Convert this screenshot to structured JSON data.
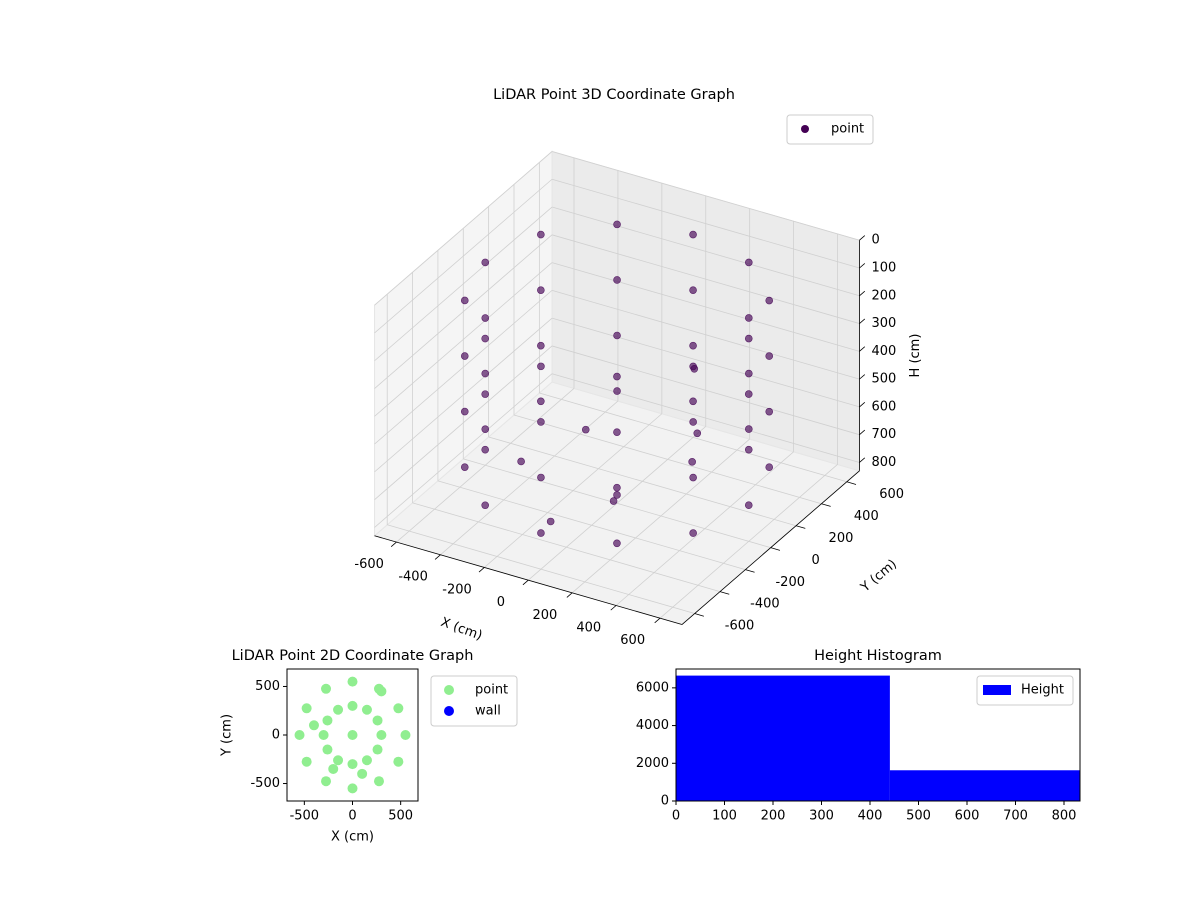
{
  "chart_data": [
    {
      "type": "scatter3d",
      "title": "LiDAR Point 3D Coordinate Graph",
      "xlabel": "X (cm)",
      "ylabel": "Y (cm)",
      "zlabel": "H (cm)",
      "xlim": [
        -700,
        700
      ],
      "ylim": [
        -700,
        700
      ],
      "zlim": [
        830,
        0
      ],
      "xticks": [
        -600,
        -400,
        -200,
        0,
        200,
        400,
        600
      ],
      "yticks": [
        -600,
        -400,
        -200,
        0,
        200,
        400,
        600
      ],
      "zticks": [
        0,
        100,
        200,
        300,
        400,
        500,
        600,
        700,
        800
      ],
      "grid": true,
      "legend": "upper right",
      "series": [
        {
          "name": "point",
          "color": "#440154",
          "x": [
            600,
            520,
            300,
            0,
            -300,
            -520,
            -600,
            -520,
            -300,
            0,
            300,
            520,
            600,
            520,
            300,
            0,
            -300,
            -520,
            -600,
            -520,
            -300,
            0,
            300,
            520,
            600,
            520,
            300,
            0,
            -300,
            -520,
            -600,
            -520,
            -300,
            0,
            300,
            520,
            600,
            520,
            300,
            0,
            -300,
            -520,
            -600,
            -520,
            -300,
            0,
            300,
            520,
            -200,
            100,
            250,
            -100,
            400,
            -350,
            150,
            0
          ],
          "y": [
            0,
            300,
            520,
            600,
            520,
            300,
            0,
            -300,
            -520,
            -600,
            -520,
            -300,
            0,
            300,
            520,
            600,
            520,
            300,
            0,
            -300,
            -520,
            -600,
            -520,
            -300,
            0,
            300,
            520,
            600,
            520,
            300,
            0,
            -300,
            -520,
            -600,
            -520,
            -300,
            0,
            300,
            520,
            600,
            520,
            300,
            0,
            -300,
            -520,
            -600,
            -520,
            -300,
            100,
            -200,
            200,
            -350,
            -100,
            -150,
            350,
            0
          ],
          "z": [
            100,
            100,
            100,
            100,
            100,
            100,
            100,
            100,
            100,
            100,
            100,
            100,
            300,
            300,
            300,
            300,
            300,
            300,
            300,
            300,
            300,
            300,
            300,
            300,
            500,
            500,
            500,
            500,
            500,
            500,
            500,
            500,
            500,
            500,
            500,
            500,
            700,
            700,
            700,
            700,
            700,
            700,
            700,
            700,
            700,
            700,
            700,
            700,
            650,
            720,
            600,
            780,
            550,
            700,
            450,
            800
          ]
        }
      ]
    },
    {
      "type": "scatter",
      "title": "LiDAR Point 2D Coordinate Graph",
      "xlabel": "X (cm)",
      "ylabel": "Y (cm)",
      "xlim": [
        -680,
        680
      ],
      "ylim": [
        -680,
        680
      ],
      "xticks": [
        -500,
        0,
        500
      ],
      "yticks": [
        -500,
        0,
        500
      ],
      "legend": "outside right",
      "series": [
        {
          "name": "point",
          "color": "#90ee90",
          "x": [
            550,
            476,
            275,
            0,
            -275,
            -476,
            -550,
            -476,
            -275,
            0,
            275,
            476,
            300,
            260,
            150,
            0,
            -150,
            -260,
            -300,
            -260,
            -150,
            0,
            150,
            260,
            0,
            100,
            -200,
            300,
            -400
          ],
          "y": [
            0,
            275,
            476,
            550,
            476,
            275,
            0,
            -275,
            -476,
            -550,
            -476,
            -275,
            0,
            150,
            260,
            300,
            260,
            150,
            0,
            -150,
            -260,
            -300,
            -260,
            -150,
            0,
            -400,
            -350,
            450,
            100
          ]
        },
        {
          "name": "wall",
          "color": "#0000ff",
          "x": [],
          "y": []
        }
      ]
    },
    {
      "type": "histogram",
      "title": "Height Histogram",
      "xlim": [
        0,
        833
      ],
      "ylim": [
        0,
        7000
      ],
      "xticks": [
        0,
        100,
        200,
        300,
        400,
        500,
        600,
        700,
        800
      ],
      "yticks": [
        0,
        2000,
        4000,
        6000
      ],
      "legend": "upper right",
      "bins": [
        0,
        441,
        833
      ],
      "series": [
        {
          "name": "Height",
          "color": "#0000ff",
          "values": [
            6650,
            1630
          ]
        }
      ]
    }
  ]
}
